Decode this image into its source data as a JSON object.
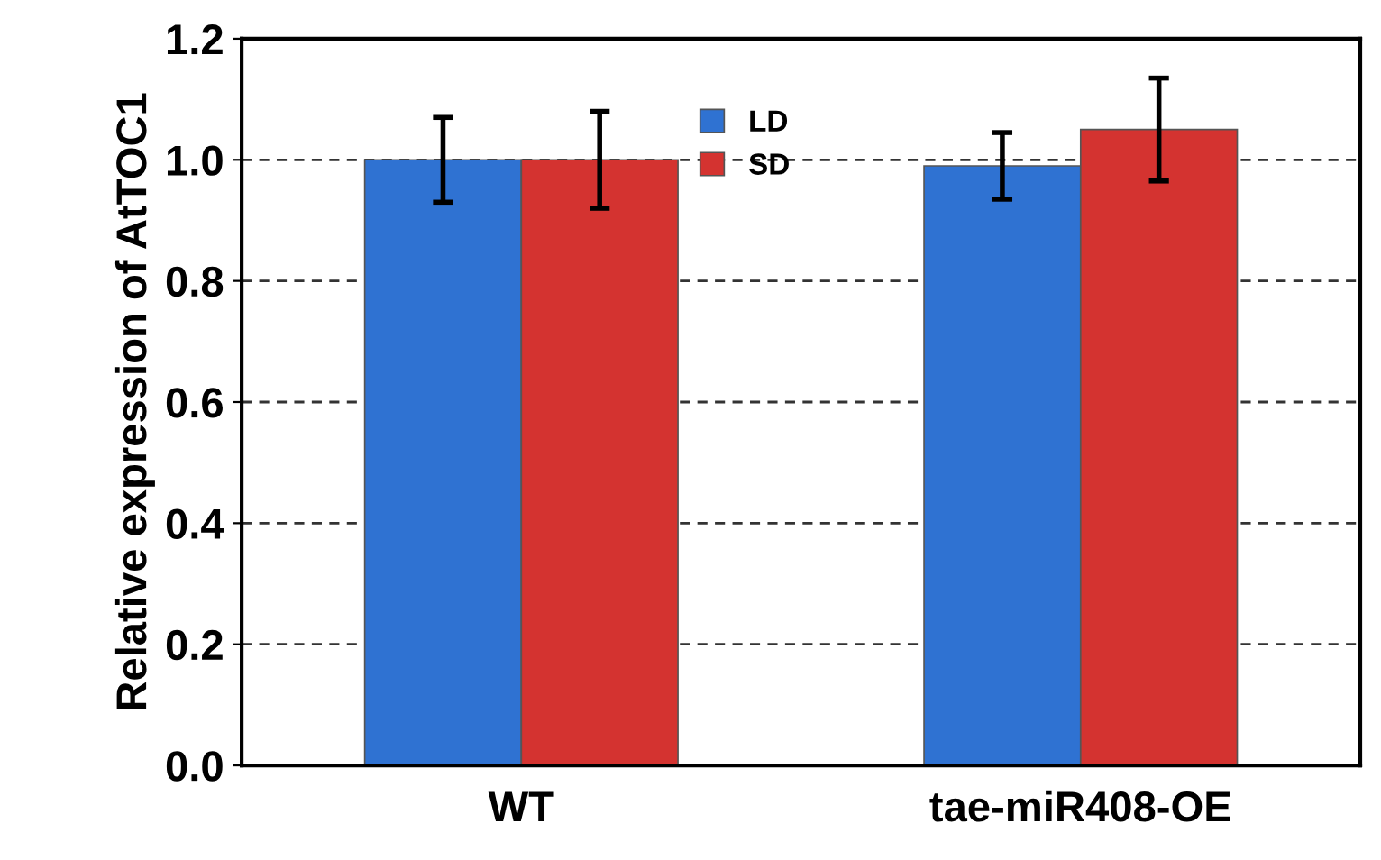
{
  "chart_data": {
    "type": "bar",
    "ylabel": "Relative expression of AtTOC1",
    "categories": [
      "WT",
      "tae-miR408-OE"
    ],
    "series": [
      {
        "name": "LD",
        "color": "#2f72d2",
        "values": [
          1.0,
          0.99
        ],
        "errors": [
          0.07,
          0.055
        ]
      },
      {
        "name": "SD",
        "color": "#d43330",
        "values": [
          1.0,
          1.05
        ],
        "errors": [
          0.08,
          0.085
        ]
      }
    ],
    "ylim": [
      0,
      1.2
    ],
    "yticks": [
      {
        "value": 0,
        "label": "0.0"
      },
      0.2,
      0.4,
      0.6,
      0.8,
      {
        "value": 1,
        "label": "1.0"
      },
      1.2
    ],
    "grid": "y",
    "legend": "top"
  }
}
